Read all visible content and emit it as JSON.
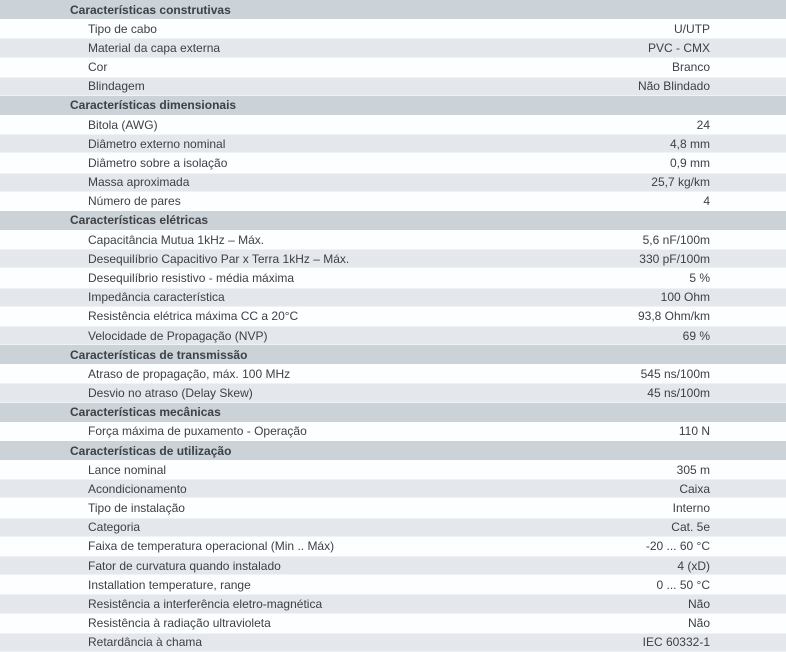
{
  "table": {
    "colors": {
      "section_header_bg": "#cbd2d8",
      "row_alt_bg": "#e4e8ec",
      "row_bg": "#fdfeff",
      "text": "#3d4145"
    },
    "sections": [
      {
        "title": "Características construtivas",
        "rows": [
          {
            "label": "Tipo de cabo",
            "value": "U/UTP"
          },
          {
            "label": "Material da capa externa",
            "value": "PVC - CMX"
          },
          {
            "label": "Cor",
            "value": "Branco"
          },
          {
            "label": "Blindagem",
            "value": "Não Blindado"
          }
        ]
      },
      {
        "title": "Características dimensionais",
        "rows": [
          {
            "label": "Bitola (AWG)",
            "value": "24"
          },
          {
            "label": "Diâmetro externo nominal",
            "value": "4,8 mm"
          },
          {
            "label": "Diâmetro sobre a isolação",
            "value": "0,9 mm"
          },
          {
            "label": "Massa aproximada",
            "value": "25,7 kg/km"
          },
          {
            "label": "Número de pares",
            "value": "4"
          }
        ]
      },
      {
        "title": "Características elétricas",
        "rows": [
          {
            "label": "Capacitância Mutua 1kHz – Máx.",
            "value": "5,6 nF/100m"
          },
          {
            "label": "Desequilíbrio Capacitivo Par x Terra 1kHz – Máx.",
            "value": "330 pF/100m"
          },
          {
            "label": "Desequilíbrio resistivo - média máxima",
            "value": "5 %"
          },
          {
            "label": "Impedância característica",
            "value": "100 Ohm"
          },
          {
            "label": "Resistência elétrica máxima CC a 20°C",
            "value": "93,8 Ohm/km"
          },
          {
            "label": "Velocidade de Propagação (NVP)",
            "value": "69 %"
          }
        ]
      },
      {
        "title": "Características de transmissão",
        "rows": [
          {
            "label": "Atraso de propagação, máx. 100 MHz",
            "value": "545 ns/100m"
          },
          {
            "label": "Desvio no atraso (Delay Skew)",
            "value": "45 ns/100m"
          }
        ]
      },
      {
        "title": "Características mecânicas",
        "rows": [
          {
            "label": "Força máxima de puxamento - Operação",
            "value": "110 N"
          }
        ]
      },
      {
        "title": "Características de utilização",
        "rows": [
          {
            "label": "Lance nominal",
            "value": "305 m"
          },
          {
            "label": "Acondicionamento",
            "value": "Caixa"
          },
          {
            "label": "Tipo de instalação",
            "value": "Interno"
          },
          {
            "label": "Categoria",
            "value": "Cat. 5e"
          },
          {
            "label": "Faixa de temperatura operacional (Min .. Máx)",
            "value": "-20 ... 60 °C"
          },
          {
            "label": "Fator de curvatura quando instalado",
            "value": "4 (xD)"
          },
          {
            "label": "Installation temperature, range",
            "value": "0 ... 50 °C"
          },
          {
            "label": "Resistência a interferência eletro-magnética",
            "value": "Não"
          },
          {
            "label": "Resistência à radiação ultravioleta",
            "value": "Não"
          },
          {
            "label": "Retardância à chama",
            "value": "IEC 60332-1"
          }
        ]
      }
    ]
  }
}
